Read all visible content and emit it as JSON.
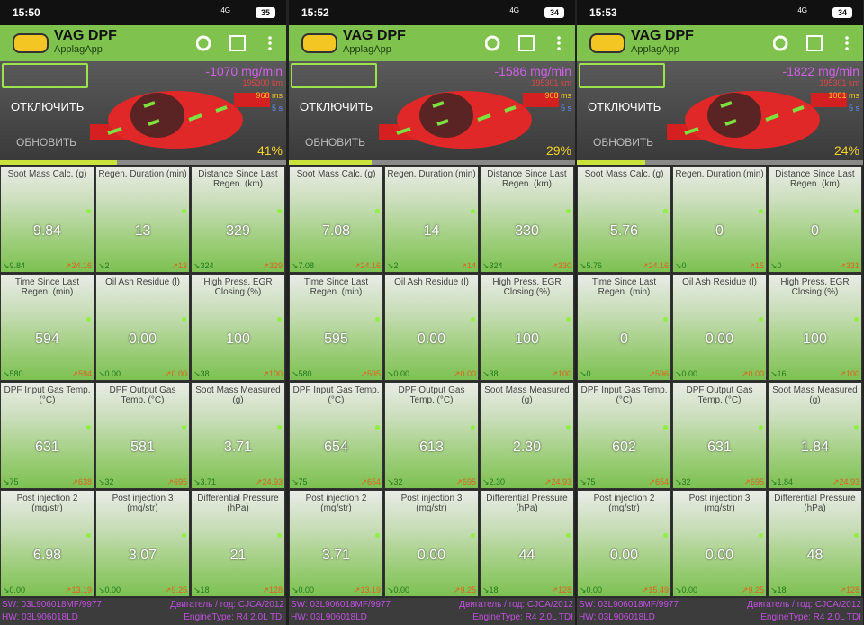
{
  "app": {
    "title": "VAG DPF",
    "subtitle": "ApplagApp",
    "network": "4G",
    "button_off": "ОТКЛЮЧИТЬ",
    "button_refresh": "ОБНОВИТЬ",
    "parameter_labels": [
      "Soot Mass Calc. (g)",
      "Regen. Duration (min)",
      "Distance Since Last Regen. (km)",
      "Time Since Last Regen. (min)",
      "Oil Ash Residue (l)",
      "High Press. EGR Closing (%)",
      "DPF Input Gas Temp. (°C)",
      "DPF Output Gas Temp. (°C)",
      "Soot Mass Measured (g)",
      "Post injection 2 (mg/str)",
      "Post injection 3 (mg/str)",
      "Differential Pressure (hPa)"
    ],
    "footer": {
      "sw": "SW: 03L906018MF/9977",
      "engine_year": "Двигатель / год: CJCA/2012",
      "hw": "HW: 03L906018LD",
      "engine_type": "EngineType: R4 2.0L TDI"
    }
  },
  "screens": [
    {
      "time": "15:50",
      "battery": "35",
      "flow": "-1070 mg/min",
      "odometer": "195300 km",
      "latency": "968 ms",
      "interval": "5 s",
      "progress": {
        "value": 41,
        "label": "41%"
      },
      "cells": [
        {
          "value": "9.84",
          "min": "9.84",
          "max": "24.16"
        },
        {
          "value": "13",
          "min": "2",
          "max": "13"
        },
        {
          "value": "329",
          "min": "324",
          "max": "329"
        },
        {
          "value": "594",
          "min": "580",
          "max": "594"
        },
        {
          "value": "0.00",
          "min": "0.00",
          "max": "0.00"
        },
        {
          "value": "100",
          "min": "38",
          "max": "100"
        },
        {
          "value": "631",
          "min": "75",
          "max": "638"
        },
        {
          "value": "581",
          "min": "32",
          "max": "695"
        },
        {
          "value": "3.71",
          "min": "3.71",
          "max": "24.93"
        },
        {
          "value": "6.98",
          "min": "0.00",
          "max": "13.19"
        },
        {
          "value": "3.07",
          "min": "0.00",
          "max": "9.25"
        },
        {
          "value": "21",
          "min": "18",
          "max": "128"
        }
      ]
    },
    {
      "time": "15:52",
      "battery": "34",
      "flow": "-1586 mg/min",
      "odometer": "195301 km",
      "latency": "968 ms",
      "interval": "5 s",
      "progress": {
        "value": 29,
        "label": "29%"
      },
      "cells": [
        {
          "value": "7.08",
          "min": "7.08",
          "max": "24.16"
        },
        {
          "value": "14",
          "min": "2",
          "max": "14"
        },
        {
          "value": "330",
          "min": "324",
          "max": "330"
        },
        {
          "value": "595",
          "min": "580",
          "max": "595"
        },
        {
          "value": "0.00",
          "min": "0.00",
          "max": "0.00"
        },
        {
          "value": "100",
          "min": "38",
          "max": "100"
        },
        {
          "value": "654",
          "min": "75",
          "max": "654"
        },
        {
          "value": "613",
          "min": "32",
          "max": "695"
        },
        {
          "value": "2.30",
          "min": "2.30",
          "max": "24.93"
        },
        {
          "value": "3.71",
          "min": "0.00",
          "max": "13.19"
        },
        {
          "value": "0.00",
          "min": "0.00",
          "max": "9.25"
        },
        {
          "value": "44",
          "min": "18",
          "max": "128"
        }
      ]
    },
    {
      "time": "15:53",
      "battery": "34",
      "flow": "-1822 mg/min",
      "odometer": "195301 km",
      "latency": "1081 ms",
      "interval": "5 s",
      "progress": {
        "value": 24,
        "label": "24%"
      },
      "cells": [
        {
          "value": "5.76",
          "min": "5.76",
          "max": "24.16"
        },
        {
          "value": "0",
          "min": "0",
          "max": "15"
        },
        {
          "value": "0",
          "min": "0",
          "max": "331"
        },
        {
          "value": "0",
          "min": "0",
          "max": "596"
        },
        {
          "value": "0.00",
          "min": "0.00",
          "max": "0.00"
        },
        {
          "value": "100",
          "min": "16",
          "max": "100"
        },
        {
          "value": "602",
          "min": "75",
          "max": "654"
        },
        {
          "value": "631",
          "min": "32",
          "max": "695"
        },
        {
          "value": "1.84",
          "min": "1.84",
          "max": "24.93"
        },
        {
          "value": "0.00",
          "min": "0.00",
          "max": "15.49"
        },
        {
          "value": "0.00",
          "min": "0.00",
          "max": "9.25"
        },
        {
          "value": "48",
          "min": "18",
          "max": "128"
        }
      ]
    }
  ]
}
